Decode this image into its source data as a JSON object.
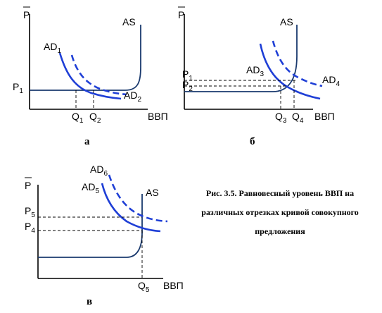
{
  "axis_labels": {
    "price": "P",
    "output": "ВВП"
  },
  "panels": [
    {
      "letter": "а",
      "curves": {
        "as": "AS",
        "ad_base": "AD",
        "ad_sub_a": "1",
        "ad_sub_b": "2"
      },
      "price_levels": [
        {
          "base": "P",
          "sub": "1"
        }
      ],
      "quantities": [
        {
          "base": "Q",
          "sub": "1"
        },
        {
          "base": "Q",
          "sub": "2"
        }
      ]
    },
    {
      "letter": "б",
      "curves": {
        "as": "AS",
        "ad_base": "AD",
        "ad_sub_a": "3",
        "ad_sub_b": "4"
      },
      "price_levels": [
        {
          "base": "P",
          "sub": "1"
        },
        {
          "base": "P",
          "sub": "2"
        }
      ],
      "quantities": [
        {
          "base": "Q",
          "sub": "3"
        },
        {
          "base": "Q",
          "sub": "4"
        }
      ]
    },
    {
      "letter": "в",
      "curves": {
        "as": "AS",
        "ad_base": "AD",
        "ad_sub_a": "5",
        "ad_sub_b": "6"
      },
      "price_levels": [
        {
          "base": "P",
          "sub": "5"
        },
        {
          "base": "P",
          "sub": "4"
        }
      ],
      "quantities": [
        {
          "base": "Q",
          "sub": "5"
        }
      ]
    }
  ],
  "caption": {
    "line1": "Рис. 3.5. Равновесный уровень ВВП на",
    "line2": "различных отрезках кривой совокупного",
    "line3": "предложения"
  },
  "colors": {
    "ad": "#1f3fd6",
    "as": "#1a3a6e"
  }
}
